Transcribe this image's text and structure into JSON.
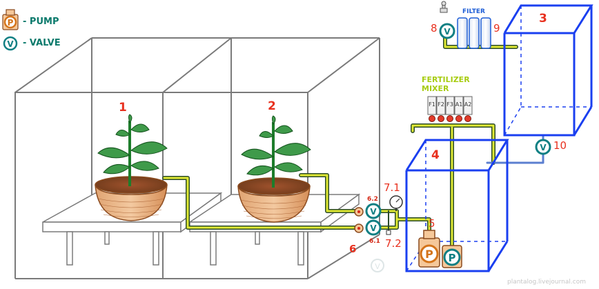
{
  "legend": {
    "pump_label": "- PUMP",
    "valve_label": "- VALVE",
    "pump_symbol": "P",
    "valve_symbol": "V"
  },
  "labels": {
    "n1": "1",
    "n2": "2",
    "n3": "3",
    "n4": "4",
    "n5": "5",
    "n6": "6",
    "n6_1": "6.1",
    "n6_2": "6.2",
    "n7_1": "7.1",
    "n7_2": "7.2",
    "n8": "8",
    "n9": "9",
    "n10": "10"
  },
  "filter_label": "FILTER",
  "fertilizer_mixer": {
    "line1": "FERTILIZER",
    "line2": "MIXER"
  },
  "mixer_tanks": [
    "F1",
    "F2",
    "F3",
    "A1",
    "A2"
  ],
  "footer_text": "plantalog.livejournal.com",
  "colors": {
    "tank_blue": "#1a3ff0",
    "pipe_yellow": "#dfe833",
    "pipe_dark": "#2a4a2a",
    "frame_gray": "#7a7a7a",
    "label_red": "#e8311f",
    "pump_orange": "#d4741a",
    "valve_teal": "#0f7f83",
    "legend_green": "#0b7a6c",
    "mixer_green": "#a7cc10"
  }
}
